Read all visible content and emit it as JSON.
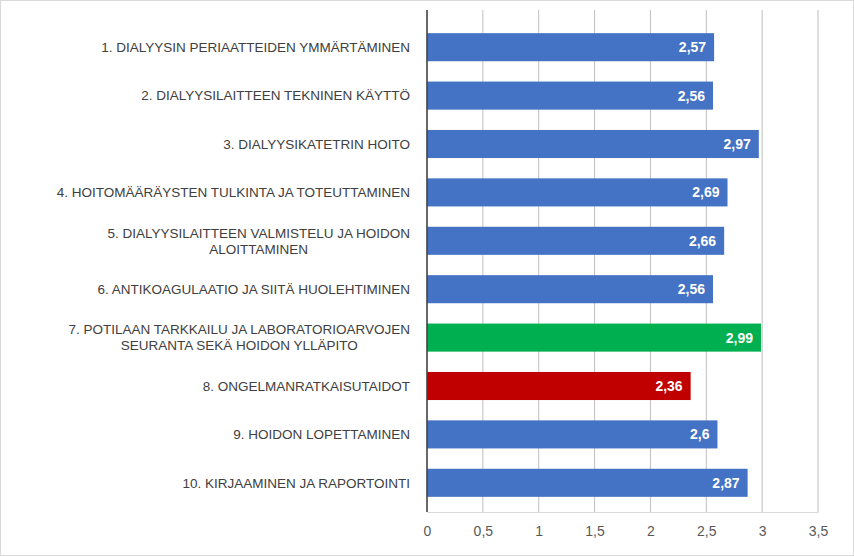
{
  "chart_data": {
    "type": "bar",
    "orientation": "horizontal",
    "categories": [
      "1. DIALYYSIN PERIAATTEIDEN YMMÄRTÄMINEN",
      "2. DIALYYSILAITTEEN TEKNINEN KÄYTTÖ",
      "3. DIALYYSIKATETRIN HOITO",
      "4. HOITOMÄÄRÄYSTEN TULKINTA JA TOTEUTTAMINEN",
      "5. DIALYYSILAITTEEN VALMISTELU JA HOIDON ALOITTAMINEN",
      "6. ANTIKOAGULAATIO JA SIITÄ HUOLEHTIMINEN",
      "7. POTILAAN TARKKAILU JA LABORATORIOARVOJEN SEURANTA SEKÄ HOIDON YLLÄPITO",
      "8. ONGELMANRATKAISUTAIDOT",
      "9. HOIDON LOPETTAMINEN",
      "10. KIRJAAMINEN JA RAPORTOINTI"
    ],
    "values": [
      2.57,
      2.56,
      2.97,
      2.69,
      2.66,
      2.56,
      2.99,
      2.36,
      2.6,
      2.87
    ],
    "value_labels": [
      "2,57",
      "2,56",
      "2,97",
      "2,69",
      "2,66",
      "2,56",
      "2,99",
      "2,36",
      "2,6",
      "2,87"
    ],
    "colors": [
      "#4472c4",
      "#4472c4",
      "#4472c4",
      "#4472c4",
      "#4472c4",
      "#4472c4",
      "#00b050",
      "#c00000",
      "#4472c4",
      "#4472c4"
    ],
    "xlim": [
      0,
      3.5
    ],
    "xticks": [
      0,
      {
        "value": 0.5,
        "label": "0,5"
      },
      1,
      {
        "value": 1.5,
        "label": "1,5"
      },
      2,
      {
        "value": 2.5,
        "label": "2,5"
      },
      3,
      {
        "value": 3.5,
        "label": "3,5"
      }
    ],
    "grid": true,
    "data_labels": true
  }
}
